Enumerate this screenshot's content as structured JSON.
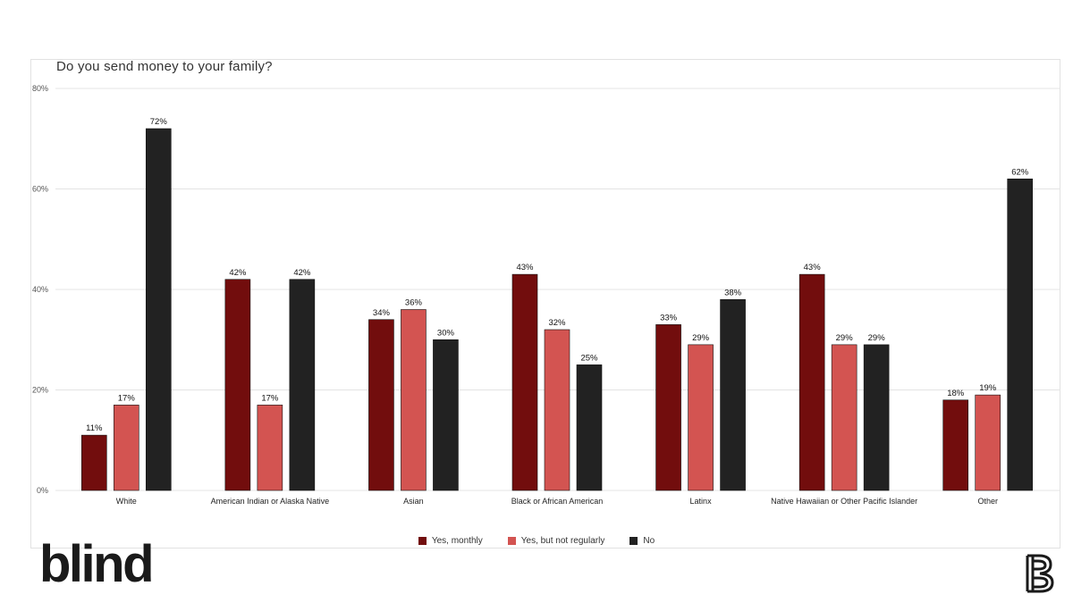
{
  "title": "Do you send money to your family?",
  "colors": {
    "yes_monthly": "#720d0d",
    "yes_not_regularly": "#d35451",
    "no": "#222222",
    "grid": "#e4e4e4"
  },
  "legend": {
    "items": [
      {
        "label": "Yes, monthly",
        "color": "#720d0d"
      },
      {
        "label": "Yes, but not regularly",
        "color": "#d35451"
      },
      {
        "label": "No",
        "color": "#222222"
      }
    ]
  },
  "brand": {
    "logo_text": "blind",
    "mark_icon": "blind-b-icon"
  },
  "chart_data": {
    "type": "bar",
    "title": "Do you send money to your family?",
    "categories": [
      "White",
      "American Indian or Alaska Native",
      "Asian",
      "Black or African American",
      "Latinx",
      "Native Hawaiian or Other Pacific Islander",
      "Other"
    ],
    "series": [
      {
        "name": "Yes, monthly",
        "values": [
          11,
          42,
          34,
          43,
          33,
          43,
          18
        ]
      },
      {
        "name": "Yes, but not regularly",
        "values": [
          17,
          17,
          36,
          32,
          29,
          29,
          19
        ]
      },
      {
        "name": "No",
        "values": [
          72,
          42,
          30,
          25,
          38,
          29,
          62
        ]
      }
    ],
    "value_labels": [
      [
        "11%",
        "42%",
        "34%",
        "43%",
        "33%",
        "43%",
        "18%"
      ],
      [
        "17%",
        "17%",
        "36%",
        "32%",
        "29%",
        "29%",
        "19%"
      ],
      [
        "72%",
        "42%",
        "30%",
        "25%",
        "38%",
        "29%",
        "62%"
      ]
    ],
    "yticks": [
      "0%",
      "20%",
      "40%",
      "60%",
      "80%"
    ],
    "ylim": [
      0,
      80
    ],
    "grid": true,
    "legend_position": "bottom-center"
  }
}
